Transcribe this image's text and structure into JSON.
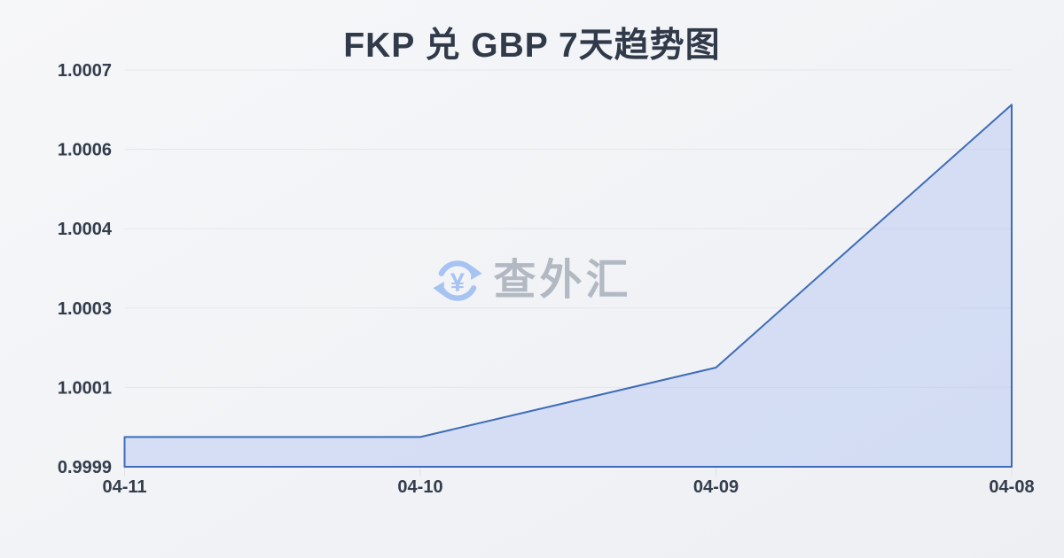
{
  "page": {
    "title": "FKP 兑 GBP 7天趋势图",
    "watermark": {
      "icon": "currency-exchange-icon",
      "text": "查外汇"
    },
    "colors": {
      "background_start": "#f6f7f9",
      "background_end": "#edeff3",
      "title_text": "#303a49",
      "axis_text": "#333d4c",
      "line": "#3e6cb8",
      "area_fill": "rgba(140,168,240,0.28)",
      "gridline": "#e3e6eb",
      "axis_tick": "#dfe2e7",
      "watermark_text": "#b3b9c3",
      "watermark_icon": "#a6c3f2"
    }
  },
  "chart_data": {
    "type": "area",
    "title": "FKP 兑 GBP 7天趋势图",
    "x": [
      "04-11",
      "04-10",
      "04-09",
      "04-08"
    ],
    "values": [
      0.99996,
      0.99996,
      1.0001,
      1.00063
    ],
    "y_tick_labels": [
      "0.9999",
      "1.0001",
      "1.0003",
      "1.0004",
      "1.0006",
      "1.0007"
    ],
    "ylim": [
      0.9999,
      1.0007
    ],
    "xlabel": "",
    "ylabel": "",
    "grid": true,
    "legend_position": "none"
  }
}
